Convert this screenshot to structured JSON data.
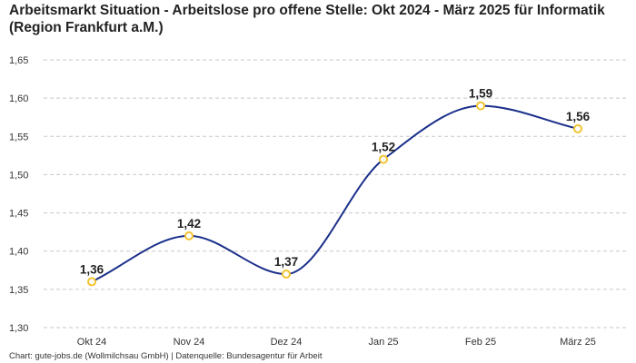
{
  "chart_data": {
    "type": "line",
    "title": "Arbeitsmarkt Situation - Arbeitslose pro offene Stelle: Okt 2024 - März 2025 für Informatik (Region Frankfurt a.M.)",
    "categories": [
      "Okt 24",
      "Nov 24",
      "Dez 24",
      "Jan 25",
      "Feb 25",
      "März 25"
    ],
    "values": [
      1.36,
      1.42,
      1.37,
      1.52,
      1.59,
      1.56
    ],
    "value_labels": [
      "1,36",
      "1,42",
      "1,37",
      "1,52",
      "1,59",
      "1,56"
    ],
    "ylim": [
      1.3,
      1.65
    ],
    "yticks": [
      1.3,
      1.35,
      1.4,
      1.45,
      1.5,
      1.55,
      1.6,
      1.65
    ],
    "ytick_labels": [
      "1,30",
      "1,35",
      "1,40",
      "1,45",
      "1,50",
      "1,55",
      "1,60",
      "1,65"
    ],
    "xlabel": "",
    "ylabel": "",
    "grid": true,
    "line_color": "#1a2f8a",
    "marker_color": "#f4c430",
    "source": "Chart: gute-jobs.de (Wollmilchsau GmbH) | Datenquelle: Bundesagentur für Arbeit"
  }
}
